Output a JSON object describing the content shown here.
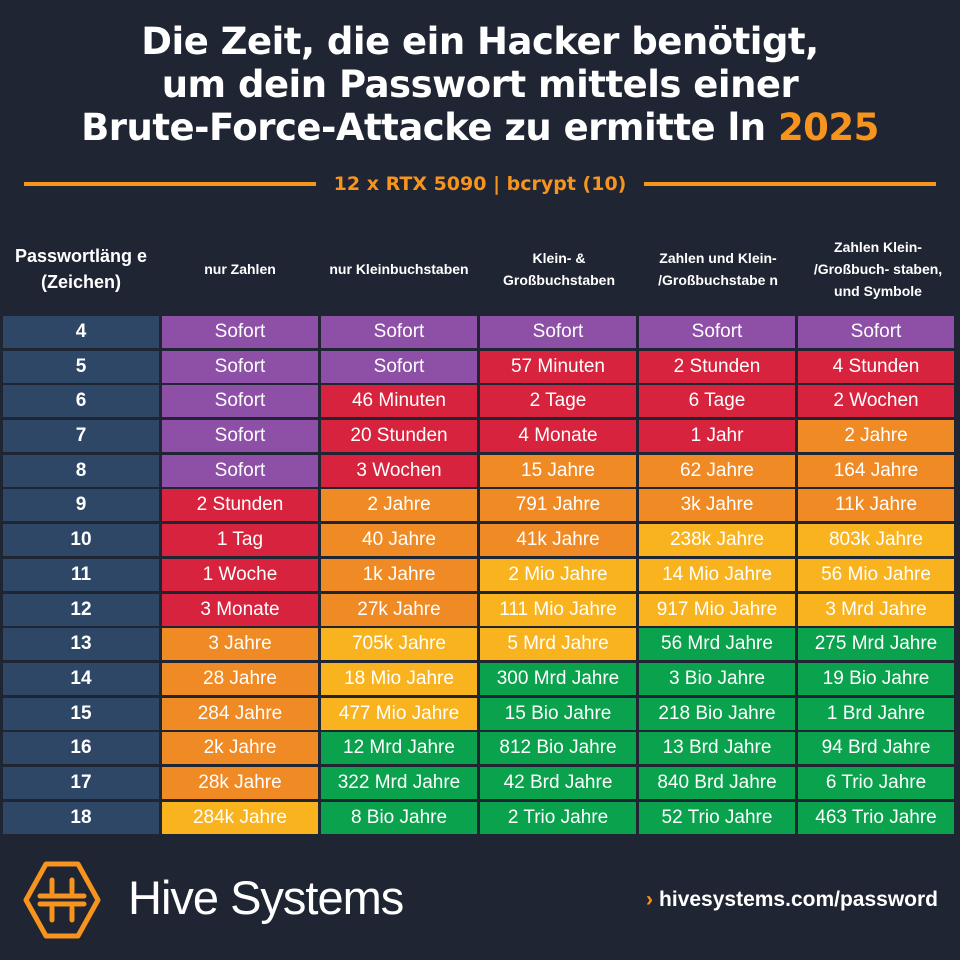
{
  "title": {
    "line1": "Die Zeit, die ein Hacker benötigt,",
    "line2": "um dein Passwort mittels einer",
    "line3": "Brute-Force-Attacke zu ermitte ln",
    "year": "2025"
  },
  "subtitle": "12 x RTX 5090 | bcrypt (10)",
  "colors": {
    "background": "#1f2532",
    "accent": "#f7941d",
    "p": "#8e4fa6",
    "r": "#d7233d",
    "o": "#f08a24",
    "y": "#f9b31f",
    "g": "#0ba24d",
    "length": "#2e4766"
  },
  "headers": [
    "Passwortläng e (Zeichen)",
    "nur Zahlen",
    "nur Kleinbuchstaben",
    "Klein- & Großbuchstaben",
    "Zahlen und Klein- /Großbuchstabe n",
    "Zahlen Klein- /Großbuch- staben, und Symbole"
  ],
  "rows": [
    {
      "len": "4",
      "cells": [
        "Sofort",
        "Sofort",
        "Sofort",
        "Sofort",
        "Sofort"
      ],
      "c": [
        "p",
        "p",
        "p",
        "p",
        "p"
      ]
    },
    {
      "len": "5",
      "cells": [
        "Sofort",
        "Sofort",
        "57 Minuten",
        "2 Stunden",
        "4 Stunden"
      ],
      "c": [
        "p",
        "p",
        "r",
        "r",
        "r"
      ]
    },
    {
      "len": "6",
      "cells": [
        "Sofort",
        "46 Minuten",
        "2 Tage",
        "6 Tage",
        "2 Wochen"
      ],
      "c": [
        "p",
        "r",
        "r",
        "r",
        "r"
      ]
    },
    {
      "len": "7",
      "cells": [
        "Sofort",
        "20 Stunden",
        "4 Monate",
        "1 Jahr",
        "2 Jahre"
      ],
      "c": [
        "p",
        "r",
        "r",
        "r",
        "o"
      ]
    },
    {
      "len": "8",
      "cells": [
        "Sofort",
        "3 Wochen",
        "15 Jahre",
        "62 Jahre",
        "164 Jahre"
      ],
      "c": [
        "p",
        "r",
        "o",
        "o",
        "o"
      ]
    },
    {
      "len": "9",
      "cells": [
        "2 Stunden",
        "2 Jahre",
        "791 Jahre",
        "3k Jahre",
        "11k Jahre"
      ],
      "c": [
        "r",
        "o",
        "o",
        "o",
        "o"
      ]
    },
    {
      "len": "10",
      "cells": [
        "1 Tag",
        "40 Jahre",
        "41k Jahre",
        "238k Jahre",
        "803k Jahre"
      ],
      "c": [
        "r",
        "o",
        "o",
        "y",
        "y"
      ]
    },
    {
      "len": "11",
      "cells": [
        "1 Woche",
        "1k Jahre",
        "2 Mio Jahre",
        "14 Mio Jahre",
        "56 Mio Jahre"
      ],
      "c": [
        "r",
        "o",
        "y",
        "y",
        "y"
      ]
    },
    {
      "len": "12",
      "cells": [
        "3 Monate",
        "27k Jahre",
        "111 Mio Jahre",
        "917 Mio Jahre",
        "3 Mrd Jahre"
      ],
      "c": [
        "r",
        "o",
        "y",
        "y",
        "y"
      ]
    },
    {
      "len": "13",
      "cells": [
        "3 Jahre",
        "705k Jahre",
        "5 Mrd Jahre",
        "56 Mrd Jahre",
        "275 Mrd Jahre"
      ],
      "c": [
        "o",
        "y",
        "y",
        "g",
        "g"
      ]
    },
    {
      "len": "14",
      "cells": [
        "28 Jahre",
        "18 Mio Jahre",
        "300 Mrd Jahre",
        "3 Bio Jahre",
        "19 Bio Jahre"
      ],
      "c": [
        "o",
        "y",
        "g",
        "g",
        "g"
      ]
    },
    {
      "len": "15",
      "cells": [
        "284 Jahre",
        "477 Mio Jahre",
        "15 Bio Jahre",
        "218 Bio Jahre",
        "1 Brd Jahre"
      ],
      "c": [
        "o",
        "y",
        "g",
        "g",
        "g"
      ]
    },
    {
      "len": "16",
      "cells": [
        "2k Jahre",
        "12 Mrd Jahre",
        "812 Bio Jahre",
        "13 Brd Jahre",
        "94 Brd Jahre"
      ],
      "c": [
        "o",
        "g",
        "g",
        "g",
        "g"
      ]
    },
    {
      "len": "17",
      "cells": [
        "28k Jahre",
        "322 Mrd Jahre",
        "42 Brd Jahre",
        "840 Brd Jahre",
        "6 Trio Jahre"
      ],
      "c": [
        "o",
        "g",
        "g",
        "g",
        "g"
      ]
    },
    {
      "len": "18",
      "cells": [
        "284k Jahre",
        "8 Bio Jahre",
        "2 Trio Jahre",
        "52 Trio Jahre",
        "463 Trio Jahre"
      ],
      "c": [
        "y",
        "g",
        "g",
        "g",
        "g"
      ]
    }
  ],
  "footer": {
    "brand": "Hive Systems",
    "url": "hivesystems.com/password",
    "logo_icon": "hive-hexagon-logo",
    "chevron_icon": "chevron-right-icon"
  }
}
